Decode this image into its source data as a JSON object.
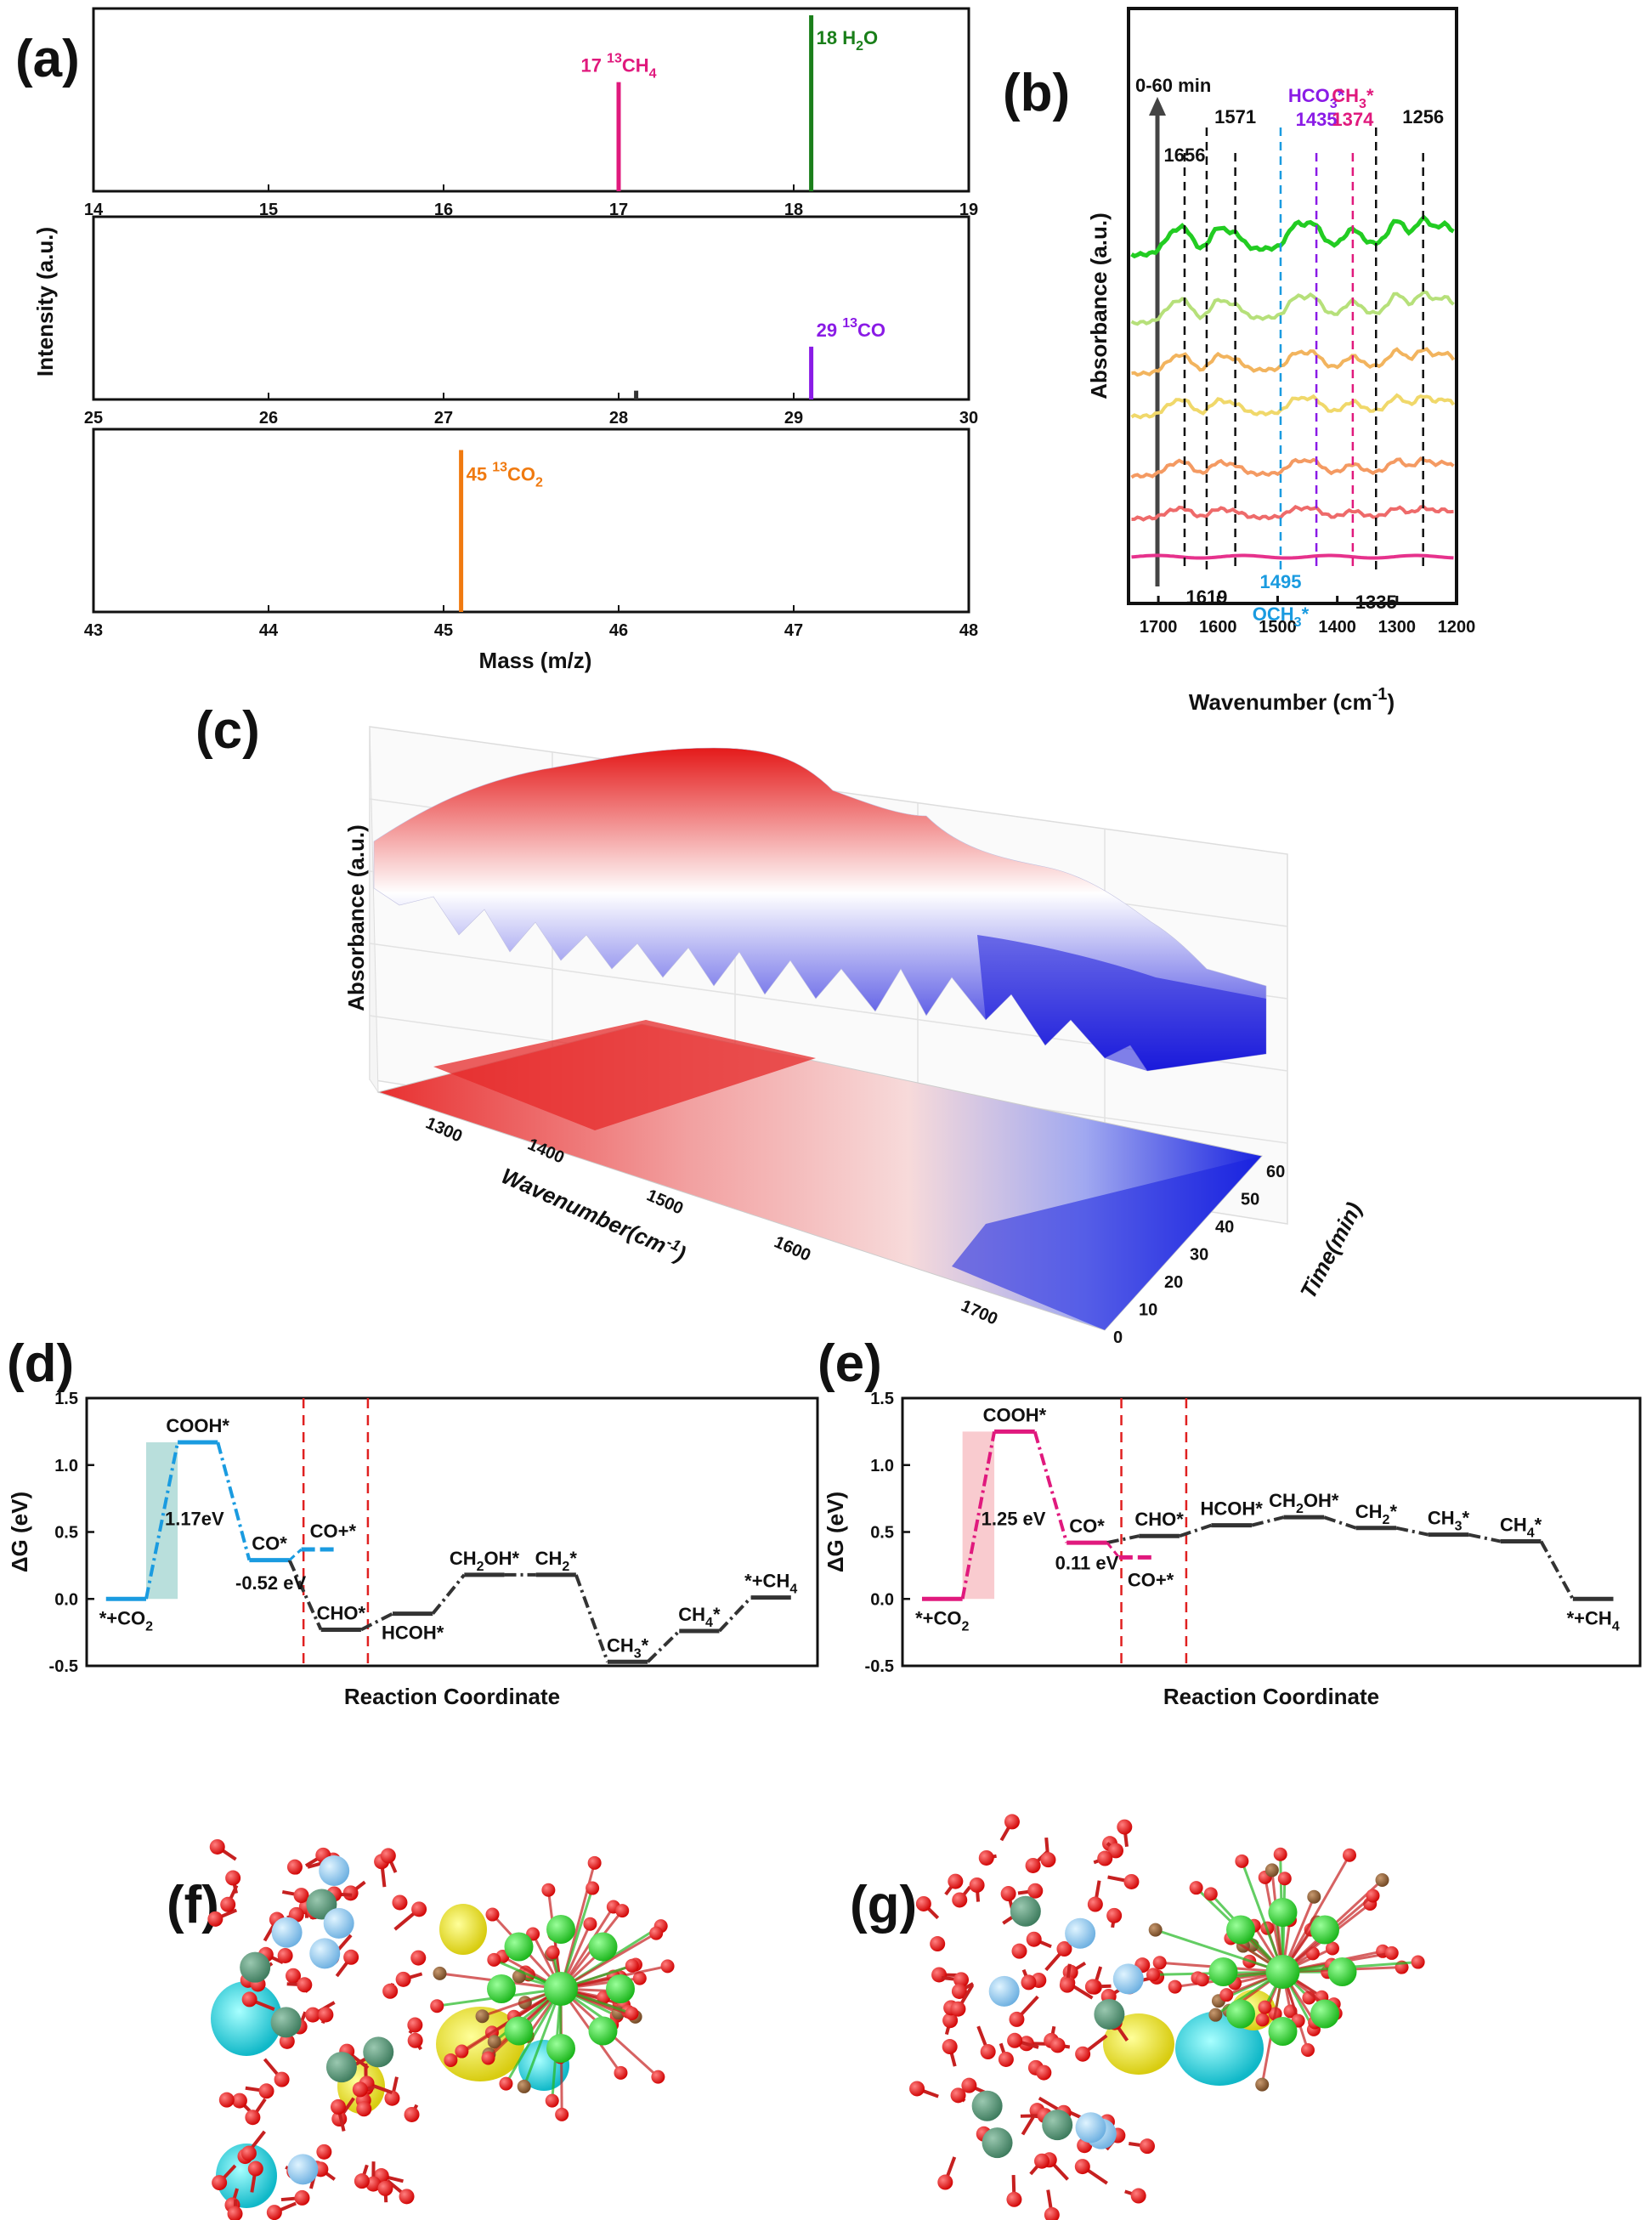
{
  "panels": {
    "a": "(a)",
    "b": "(b)",
    "c": "(c)",
    "d": "(d)",
    "e": "(e)",
    "f": "(f)",
    "g": "(g)"
  },
  "colors": {
    "magenta": "#e0197d",
    "green": "#1a7f1a",
    "violet": "#8a1be6",
    "orange": "#f07a10",
    "blue": "#1a9be0",
    "red": "#e02020",
    "dark": "#333333"
  },
  "chart_data": [
    {
      "id": "a",
      "type": "bar",
      "ylabel": "Intensity (a.u.)",
      "xlabel": "Mass (m/z)",
      "subplots": [
        {
          "xlim": [
            14,
            19
          ],
          "ticks": [
            "14",
            "15",
            "16",
            "17",
            "18",
            "19"
          ],
          "peaks": [
            {
              "x": 17.0,
              "h": 0.62,
              "mass": "17",
              "sup": "13",
              "species": "CH",
              "sub": "4",
              "color": "#e0197d"
            },
            {
              "x": 18.1,
              "h": 1.0,
              "mass": "18",
              "sup": "",
              "species": "H",
              "sub": "2",
              "tail": "O",
              "color": "#1a7f1a"
            }
          ]
        },
        {
          "xlim": [
            25,
            30
          ],
          "ticks": [
            "25",
            "26",
            "27",
            "28",
            "29",
            "30"
          ],
          "peaks": [
            {
              "x": 28.1,
              "h": 0.05,
              "mass": "",
              "color": "#333333"
            },
            {
              "x": 29.1,
              "h": 0.3,
              "mass": "29",
              "sup": "13",
              "species": "CO",
              "sub": "",
              "color": "#8a1be6"
            }
          ]
        },
        {
          "xlim": [
            43,
            48
          ],
          "ticks": [
            "43",
            "44",
            "45",
            "46",
            "47",
            "48"
          ],
          "peaks": [
            {
              "x": 45.1,
              "h": 0.92,
              "mass": "45",
              "sup": "13",
              "species": "CO",
              "sub": "2",
              "color": "#f07a10"
            }
          ]
        }
      ]
    },
    {
      "id": "b",
      "type": "line",
      "ylabel": "Absorbance (a.u.)",
      "xlabel": "Wavenumber (cm",
      "xlabel_sup": "-1",
      "xlabel_tail": ")",
      "xlim": [
        1750,
        1200
      ],
      "ticks": [
        "1700",
        "1600",
        "1500",
        "1400",
        "1300",
        "1200"
      ],
      "time_label": "0-60 min",
      "series_colors": [
        "#e6328c",
        "#ee6a6a",
        "#f49a62",
        "#f0d86a",
        "#f2b45e",
        "#b6e07a",
        "#22cc22"
      ],
      "markers": [
        {
          "x": 1656,
          "label": "1656",
          "color": "#111111",
          "pos": "top"
        },
        {
          "x": 1619,
          "label": "1619",
          "color": "#111111",
          "pos": "bottom"
        },
        {
          "x": 1571,
          "label": "1571",
          "color": "#111111",
          "pos": "top"
        },
        {
          "x": 1495,
          "label": "1495",
          "label2": "OCH",
          "label2_sub": "3",
          "label2_tail": "*",
          "color": "#1a9be0",
          "pos": "bottom"
        },
        {
          "x": 1435,
          "label": "HCO",
          "label_sub": "3",
          "label_tail": "*",
          "label2": "1435",
          "color": "#8a1be6",
          "pos": "top"
        },
        {
          "x": 1374,
          "label": "CH",
          "label_sub": "3",
          "label_tail": "*",
          "label2": "1374",
          "color": "#e0197d",
          "pos": "top"
        },
        {
          "x": 1335,
          "label": "1335",
          "color": "#111111",
          "pos": "bottom"
        },
        {
          "x": 1256,
          "label": "1256",
          "color": "#111111",
          "pos": "top"
        }
      ]
    },
    {
      "id": "c",
      "type": "area",
      "zlabel": "Absorbance (a.u.)",
      "xlabel": "Wavenumber(cm",
      "xlabel_sup": "-1",
      "xlabel_tail": ")",
      "ylabel": "Time(min)",
      "x_ticks": [
        "1300",
        "1400",
        "1500",
        "1600",
        "1700"
      ],
      "y_ticks": [
        "0",
        "10",
        "20",
        "30",
        "40",
        "50",
        "60"
      ]
    },
    {
      "id": "d",
      "type": "line",
      "ylabel": "ΔG (eV)",
      "xlabel": "Reaction Coordinate",
      "ylim": [
        -0.5,
        1.5
      ],
      "ticks": [
        "-0.5",
        "0.0",
        "0.5",
        "1.0",
        "1.5"
      ],
      "barrier": "1.17eV",
      "barrier2": "-0.52 eV",
      "levels": [
        {
          "g": 0.0,
          "label": "*+CO",
          "sub": "2",
          "pos": "below",
          "color": "#1a9be0"
        },
        {
          "g": 1.17,
          "label": "COOH*",
          "pos": "above",
          "color": "#1a9be0"
        },
        {
          "g": 0.29,
          "label": "CO*",
          "pos": "above",
          "color": "#1a9be0"
        },
        {
          "g": -0.23,
          "label": "CHO*",
          "pos": "above",
          "color": "#333333"
        },
        {
          "g": -0.11,
          "label": "HCOH*",
          "pos": "below",
          "color": "#333333"
        },
        {
          "g": 0.18,
          "label": "CH",
          "sub": "2",
          "tail": "OH*",
          "pos": "above",
          "color": "#333333"
        },
        {
          "g": 0.18,
          "label": "CH",
          "sub": "2",
          "tail": "*",
          "pos": "above",
          "color": "#333333"
        },
        {
          "g": -0.47,
          "label": "CH",
          "sub": "3",
          "tail": "*",
          "pos": "above",
          "color": "#333333"
        },
        {
          "g": -0.24,
          "label": "CH",
          "sub": "4",
          "tail": "*",
          "pos": "above",
          "color": "#333333"
        },
        {
          "g": 0.01,
          "label": "*+CH",
          "sub": "4",
          "pos": "above",
          "color": "#333333"
        }
      ],
      "branch": {
        "g": 0.37,
        "label": "CO+*",
        "color": "#1a9be0"
      }
    },
    {
      "id": "e",
      "type": "line",
      "ylabel": "ΔG (eV)",
      "xlabel": "Reaction Coordinate",
      "ylim": [
        -0.5,
        1.5
      ],
      "ticks": [
        "-0.5",
        "0.0",
        "0.5",
        "1.0",
        "1.5"
      ],
      "barrier": "1.25 eV",
      "barrier2": "0.11 eV",
      "levels": [
        {
          "g": 0.0,
          "label": "*+CO",
          "sub": "2",
          "pos": "below",
          "color": "#e0197d"
        },
        {
          "g": 1.25,
          "label": "COOH*",
          "pos": "above",
          "color": "#e0197d"
        },
        {
          "g": 0.42,
          "label": "CO*",
          "pos": "above",
          "color": "#e0197d"
        },
        {
          "g": 0.47,
          "label": "CHO*",
          "pos": "above",
          "color": "#333333"
        },
        {
          "g": 0.55,
          "label": "HCOH*",
          "pos": "above",
          "color": "#333333"
        },
        {
          "g": 0.61,
          "label": "CH",
          "sub": "2",
          "tail": "OH*",
          "pos": "above",
          "color": "#333333"
        },
        {
          "g": 0.53,
          "label": "CH",
          "sub": "2",
          "tail": "*",
          "pos": "above",
          "color": "#333333"
        },
        {
          "g": 0.48,
          "label": "CH",
          "sub": "3",
          "tail": "*",
          "pos": "above",
          "color": "#333333"
        },
        {
          "g": 0.43,
          "label": "CH",
          "sub": "4",
          "tail": "*",
          "pos": "above",
          "color": "#333333"
        },
        {
          "g": 0.0,
          "label": "*+CH",
          "sub": "4",
          "pos": "below",
          "color": "#333333"
        }
      ],
      "branch": {
        "g": 0.31,
        "label": "CO+*",
        "color": "#e0197d"
      }
    }
  ]
}
